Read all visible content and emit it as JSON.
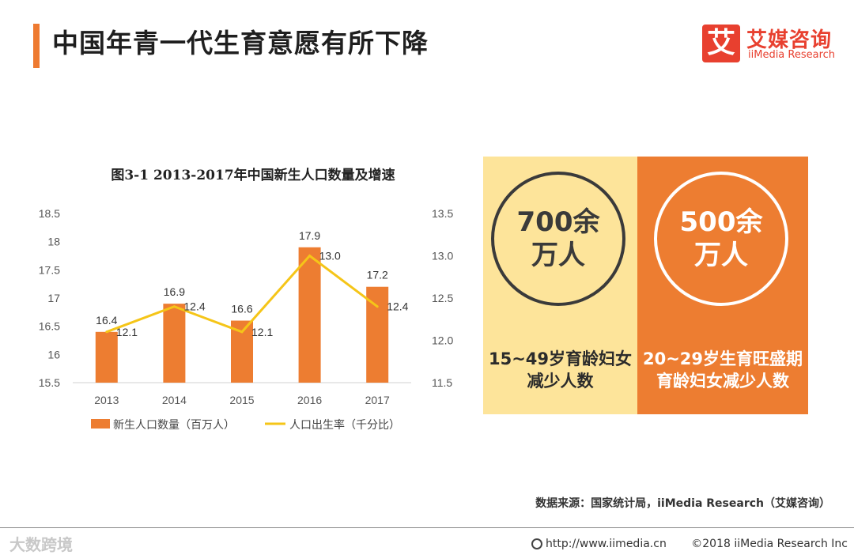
{
  "header": {
    "title": "中国年青一代生育意愿有所下降",
    "logo_mark": "艾",
    "logo_cn": "艾媒咨询",
    "logo_en": "iiMedia Research"
  },
  "chart_data": {
    "type": "bar",
    "title": "图3-1 2013-2017年中国新生人口数量及增速",
    "categories": [
      "2013",
      "2014",
      "2015",
      "2016",
      "2017"
    ],
    "series": [
      {
        "name": "新生人口数量（百万人）",
        "type": "bar",
        "axis": "left",
        "values": [
          16.4,
          16.9,
          16.6,
          17.9,
          17.2
        ],
        "labels": [
          "16.4",
          "16.9",
          "16.6",
          "17.9",
          "17.2"
        ],
        "color": "#ed7d31"
      },
      {
        "name": "人口出生率（千分比）",
        "type": "line",
        "axis": "right",
        "values": [
          12.1,
          12.4,
          12.1,
          13.0,
          12.4
        ],
        "labels": [
          "12.1",
          "12.4",
          "12.1",
          "13.0",
          "12.4"
        ],
        "color": "#f5c518"
      }
    ],
    "ylim_left": [
      15.5,
      18.5
    ],
    "yticks_left": [
      "15.5",
      "16",
      "16.5",
      "17",
      "17.5",
      "18",
      "18.5"
    ],
    "ylim_right": [
      11.5,
      13.5
    ],
    "yticks_right": [
      "11.5",
      "12.0",
      "12.5",
      "13.0",
      "13.5"
    ],
    "grid": false,
    "legend": "bottom"
  },
  "panels": {
    "left": {
      "circle_line1": "700余",
      "circle_line2": "万人",
      "caption_line1": "15~49岁育龄妇女",
      "caption_line2": "减少人数",
      "bg": "#fde49a"
    },
    "right": {
      "circle_line1": "500余",
      "circle_line2": "万人",
      "caption_line1": "20~29岁生育旺盛期",
      "caption_line2": "育龄妇女减少人数",
      "bg": "#ed7d31"
    }
  },
  "source": "数据来源：国家统计局，iiMedia Research（艾媒咨询）",
  "footer": {
    "watermark": "大数跨境",
    "url": "http://www.iimedia.cn",
    "copyright": "©2018 iiMedia Research Inc"
  }
}
